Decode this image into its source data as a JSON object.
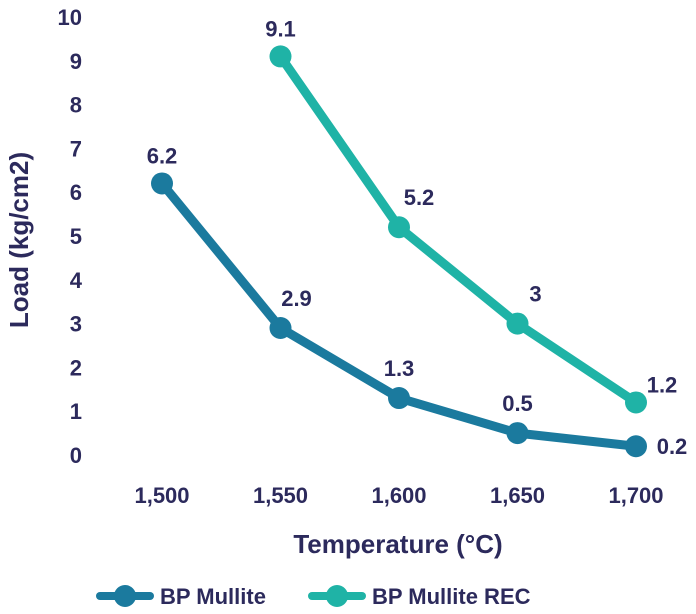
{
  "chart_data": {
    "type": "line",
    "title": "",
    "xlabel": "Temperature (°C)",
    "ylabel": "Load (kg/cm2)",
    "x": [
      1500,
      1550,
      1600,
      1650,
      1700
    ],
    "x_tick_labels": [
      "1,500",
      "1,550",
      "1,600",
      "1,650",
      "1,700"
    ],
    "y_ticks": [
      "0",
      "1",
      "2",
      "3",
      "4",
      "5",
      "6",
      "7",
      "8",
      "9",
      "10"
    ],
    "ylim": [
      0,
      10
    ],
    "grid": false,
    "legend_position": "bottom",
    "series": [
      {
        "name": "BP Mullite",
        "color": "#1b7a9e",
        "x": [
          1500,
          1550,
          1600,
          1650,
          1700
        ],
        "values": [
          6.2,
          2.9,
          1.3,
          0.5,
          0.2
        ],
        "labels": [
          "6.2",
          "2.9",
          "1.3",
          "0.5",
          "0.2"
        ]
      },
      {
        "name": "BP Mullite REC",
        "color": "#1fb3a6",
        "x": [
          1550,
          1600,
          1650,
          1700
        ],
        "values": [
          9.1,
          5.2,
          3,
          1.2
        ],
        "labels": [
          "9.1",
          "5.2",
          "3",
          "1.2"
        ]
      }
    ]
  }
}
